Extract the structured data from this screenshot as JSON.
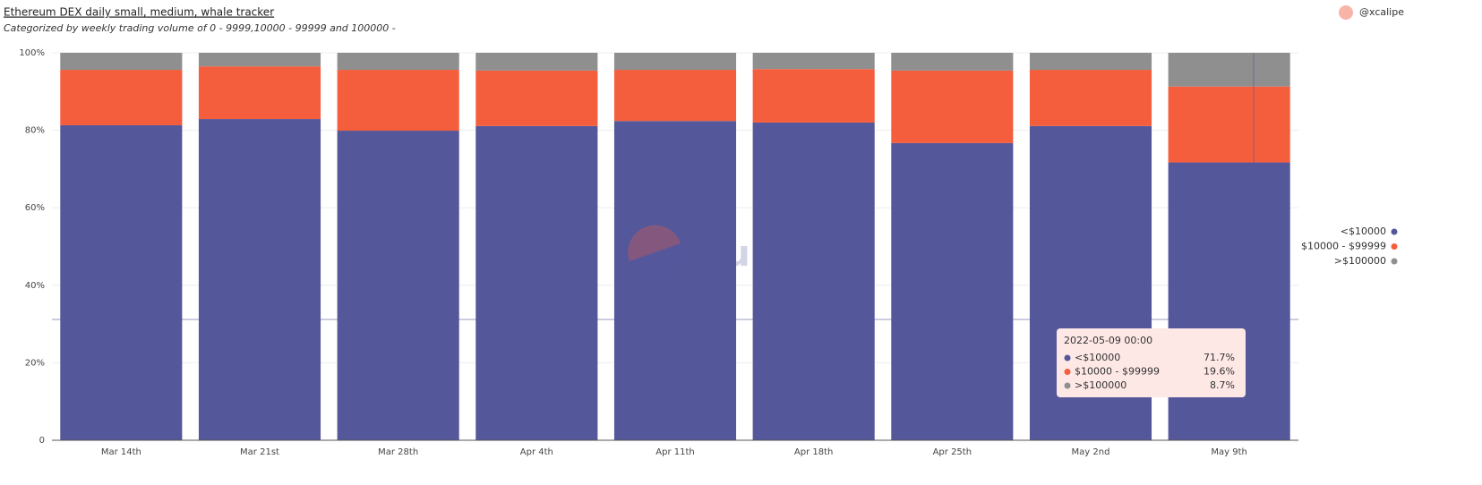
{
  "chart_data": {
    "type": "stacked_bar",
    "title": "Ethereum DEX daily small, medium, whale tracker",
    "subtitle": "Categorized by weekly trading volume of 0 - 9999,10000 - 99999 and 100000 -",
    "author": "@xcalipe",
    "watermark": "Dune",
    "categories": [
      "Mar 14th",
      "Mar 21st",
      "Mar 28th",
      "Apr 4th",
      "Apr 11th",
      "Apr 18th",
      "Apr 25th",
      "May 2nd",
      "May 9th"
    ],
    "series": [
      {
        "name": "<$10000",
        "color": "#55579b",
        "values": [
          81.3,
          82.9,
          79.9,
          81.1,
          82.4,
          82.0,
          76.7,
          81.1,
          71.7
        ]
      },
      {
        "name": "$10000 - $99999",
        "color": "#f45e3d",
        "values": [
          14.3,
          13.6,
          15.7,
          14.3,
          13.2,
          13.8,
          18.7,
          14.5,
          19.6
        ]
      },
      {
        "name": ">$100000",
        "color": "#8f8f8f",
        "values": [
          4.4,
          3.5,
          4.4,
          4.6,
          4.4,
          4.2,
          4.6,
          4.4,
          8.7
        ]
      }
    ],
    "ylim": [
      0,
      100
    ],
    "yticks": [
      0,
      {
        "value": 20,
        "label": "20%"
      },
      {
        "value": 40,
        "label": "40%"
      },
      {
        "value": 60,
        "label": "60%"
      },
      {
        "value": 80,
        "label": "80%"
      },
      {
        "value": 100,
        "label": "100%"
      }
    ],
    "grid": true,
    "legend": "right",
    "tooltip": {
      "title": "2022-05-09 00:00",
      "labels": [
        "71.7%",
        "19.6%",
        "8.7%"
      ]
    }
  }
}
